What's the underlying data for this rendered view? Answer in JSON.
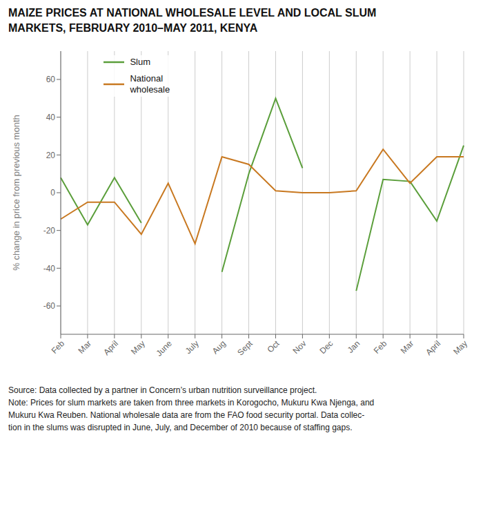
{
  "chart_data": {
    "type": "line",
    "title": "MAIZE PRICES AT NATIONAL WHOLESALE LEVEL AND LOCAL SLUM\nMARKETS, FEBRUARY 2010–MAY 2011, KENYA",
    "y_label": "% change in price from previous month",
    "categories": [
      "Feb",
      "Mar",
      "April",
      "May",
      "June",
      "July",
      "Aug",
      "Sept",
      "Oct",
      "Nov",
      "Dec",
      "Jan",
      "Feb",
      "Mar",
      "April",
      "May"
    ],
    "series": [
      {
        "name": "Slum",
        "color": "#5a9e3a",
        "values": [
          8,
          -17,
          8,
          -16,
          null,
          null,
          -42,
          10,
          50,
          13,
          null,
          -52,
          7,
          6,
          -15,
          25
        ]
      },
      {
        "name": "National\nwholesale",
        "color": "#c87820",
        "values": [
          -14,
          -5,
          -5,
          -22,
          5,
          -27,
          19,
          15,
          1,
          0,
          0,
          1,
          23,
          5,
          19,
          19
        ]
      }
    ],
    "ylim": [
      -75,
      75
    ],
    "yticks": [
      -60,
      -40,
      -20,
      0,
      20,
      40,
      60
    ],
    "grid": "x",
    "legend": "upper left",
    "annotations": [
      "Source: Data collected by a partner in Concern’s urban nutrition surveillance project.",
      "Note: Prices for slum markets are taken from three markets in Korogocho, Mukuru Kwa Njenga, and",
      "Mukuru Kwa Reuben. National wholesale data are from the FAO food security portal. Data collec-",
      "tion in the slums was disrupted in June, July, and December of 2010 because of staffing gaps."
    ]
  }
}
